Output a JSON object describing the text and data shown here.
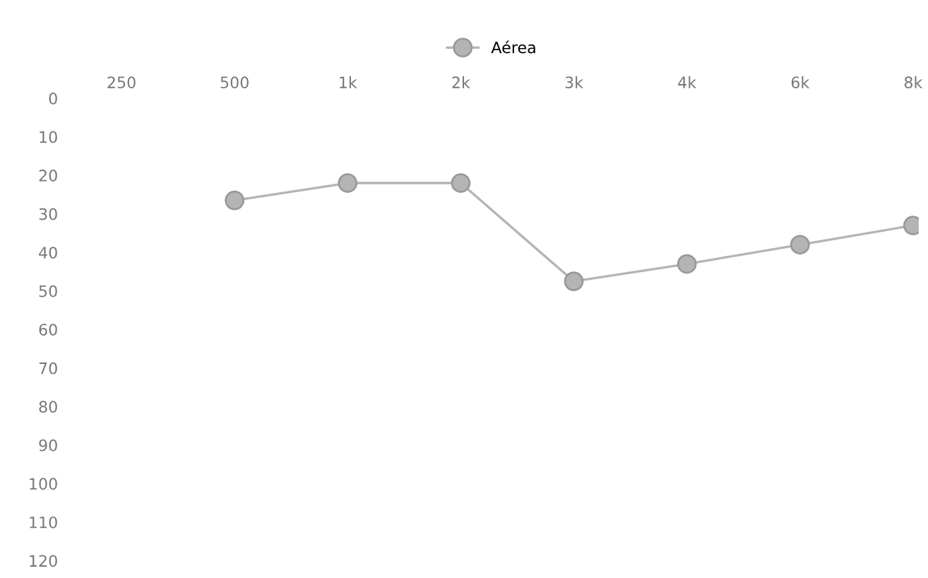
{
  "chart_data": {
    "type": "line",
    "categories": [
      "250",
      "500",
      "1k",
      "2k",
      "3k",
      "4k",
      "6k",
      "8k"
    ],
    "series": [
      {
        "name": "Aérea",
        "color": "#b4b4b4",
        "values": [
          null,
          26.5,
          22,
          22,
          47.5,
          43,
          38,
          33
        ]
      }
    ],
    "ylim": [
      120,
      0
    ],
    "yticks": [
      0,
      10,
      20,
      30,
      40,
      50,
      60,
      70,
      80,
      90,
      100,
      110,
      120
    ],
    "marker": "circle",
    "line_style": "solid",
    "legend": "top",
    "grid": false
  }
}
